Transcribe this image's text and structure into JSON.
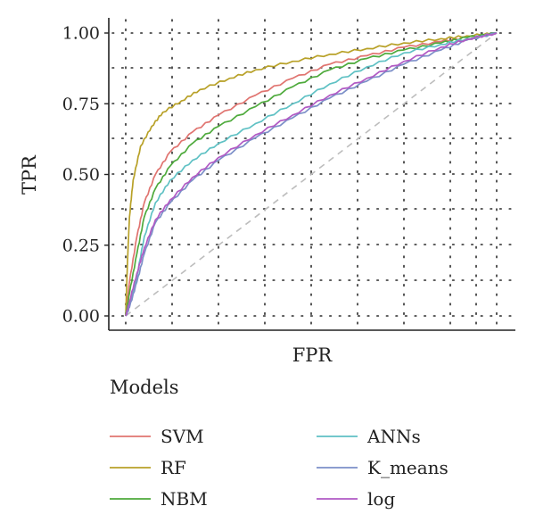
{
  "chart_data": {
    "type": "line",
    "xlabel": "FPR",
    "ylabel": "TPR",
    "xlim": [
      0,
      1
    ],
    "ylim": [
      0,
      1
    ],
    "y_ticks": [
      "0.00",
      "0.25",
      "0.50",
      "0.75",
      "1.00"
    ],
    "x_ticks": [],
    "grid": "dotted",
    "diagonal_reference": true,
    "legend": {
      "title": "Models",
      "placement": "bottom",
      "columns": 2
    },
    "series": [
      {
        "name": "SVM",
        "color": "#E07470",
        "x": [
          0,
          0.01,
          0.03,
          0.05,
          0.08,
          0.12,
          0.18,
          0.25,
          0.35,
          0.45,
          0.55,
          0.65,
          0.75,
          0.85,
          0.92,
          1.0
        ],
        "y": [
          0,
          0.12,
          0.28,
          0.4,
          0.5,
          0.58,
          0.65,
          0.71,
          0.78,
          0.84,
          0.89,
          0.92,
          0.95,
          0.97,
          0.985,
          1.0
        ]
      },
      {
        "name": "RF",
        "color": "#B8A128",
        "x": [
          0,
          0.005,
          0.01,
          0.02,
          0.04,
          0.07,
          0.1,
          0.15,
          0.2,
          0.28,
          0.35,
          0.45,
          0.55,
          0.65,
          0.75,
          0.85,
          0.92,
          1.0
        ],
        "y": [
          0,
          0.2,
          0.35,
          0.48,
          0.6,
          0.67,
          0.72,
          0.76,
          0.8,
          0.84,
          0.87,
          0.9,
          0.925,
          0.945,
          0.965,
          0.98,
          0.99,
          1.0
        ]
      },
      {
        "name": "NBM",
        "color": "#4EAA3C",
        "x": [
          0,
          0.01,
          0.03,
          0.05,
          0.08,
          0.12,
          0.18,
          0.25,
          0.35,
          0.45,
          0.55,
          0.65,
          0.75,
          0.85,
          0.92,
          1.0
        ],
        "y": [
          0,
          0.08,
          0.22,
          0.35,
          0.45,
          0.53,
          0.61,
          0.67,
          0.74,
          0.81,
          0.87,
          0.91,
          0.94,
          0.965,
          0.985,
          1.0
        ]
      },
      {
        "name": "ANNs",
        "color": "#5FC1C4",
        "x": [
          0,
          0.01,
          0.03,
          0.05,
          0.08,
          0.12,
          0.18,
          0.25,
          0.35,
          0.45,
          0.55,
          0.65,
          0.75,
          0.85,
          0.92,
          1.0
        ],
        "y": [
          0,
          0.04,
          0.14,
          0.28,
          0.4,
          0.48,
          0.55,
          0.61,
          0.68,
          0.75,
          0.82,
          0.88,
          0.93,
          0.96,
          0.98,
          1.0
        ]
      },
      {
        "name": "K_means",
        "color": "#7C8FC8",
        "x": [
          0,
          0.01,
          0.03,
          0.05,
          0.08,
          0.12,
          0.18,
          0.25,
          0.35,
          0.45,
          0.55,
          0.65,
          0.75,
          0.85,
          0.92,
          1.0
        ],
        "y": [
          0,
          0.03,
          0.12,
          0.22,
          0.33,
          0.4,
          0.48,
          0.55,
          0.63,
          0.7,
          0.77,
          0.83,
          0.89,
          0.94,
          0.975,
          1.0
        ]
      },
      {
        "name": "log",
        "color": "#B15AC4",
        "x": [
          0,
          0.01,
          0.03,
          0.05,
          0.08,
          0.12,
          0.18,
          0.25,
          0.35,
          0.45,
          0.55,
          0.65,
          0.75,
          0.85,
          0.92,
          1.0
        ],
        "y": [
          0,
          0.05,
          0.15,
          0.24,
          0.34,
          0.41,
          0.49,
          0.56,
          0.64,
          0.71,
          0.78,
          0.84,
          0.9,
          0.95,
          0.978,
          1.0
        ]
      }
    ]
  }
}
